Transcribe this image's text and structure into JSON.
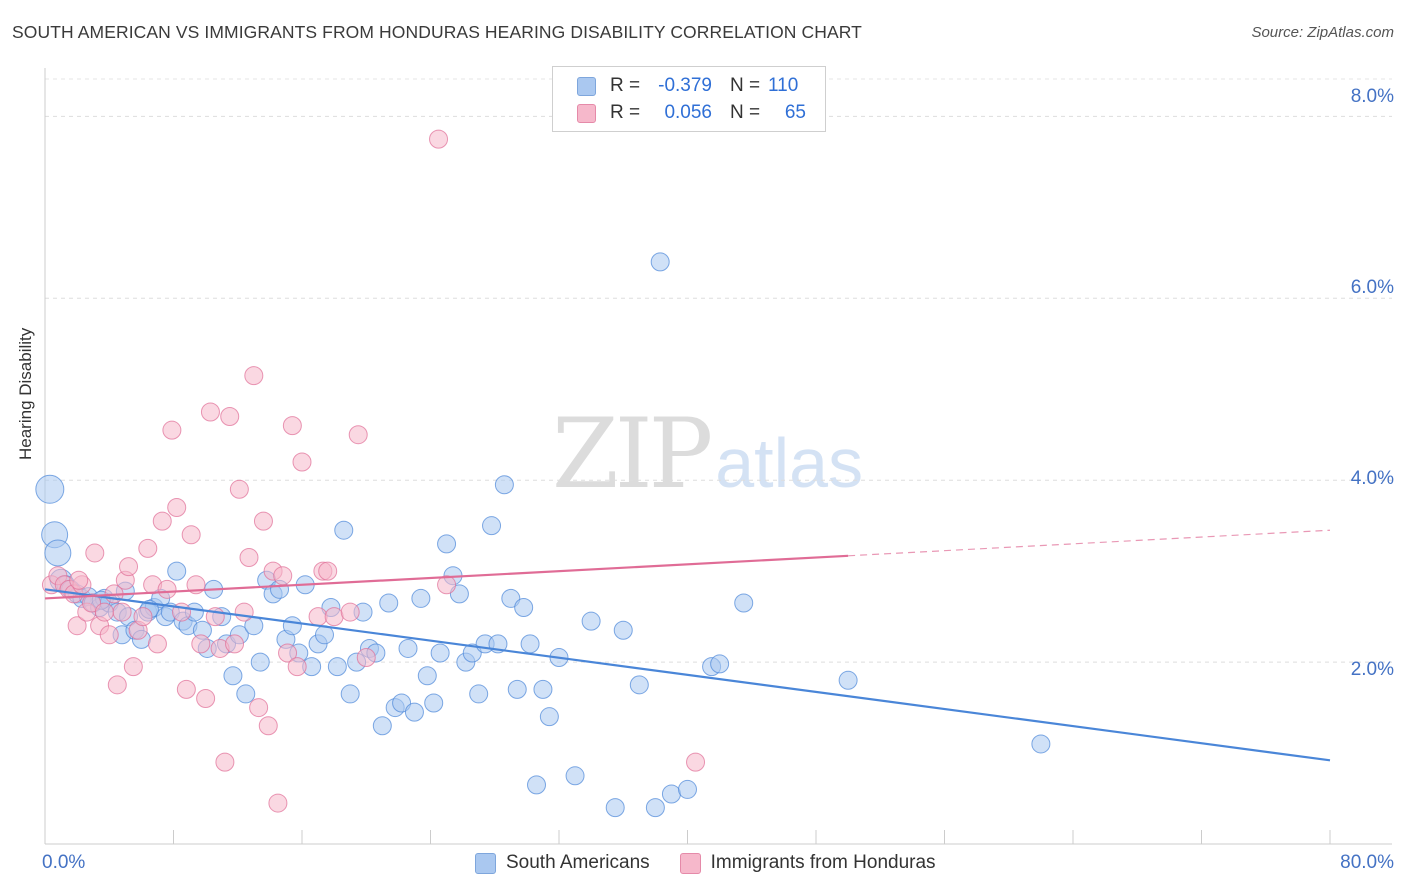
{
  "title": "SOUTH AMERICAN VS IMMIGRANTS FROM HONDURAS HEARING DISABILITY CORRELATION CHART",
  "source": "Source: ZipAtlas.com",
  "watermark": {
    "part1": "ZIP",
    "part2": "atlas"
  },
  "legend_top": {
    "rows": [
      {
        "r_label": "R =",
        "r_value": "-0.379",
        "n_label": "N =",
        "n_value": "110",
        "color": "#aac8f0"
      },
      {
        "r_label": "R =",
        "r_value": "0.056",
        "n_label": "N =",
        "n_value": "65",
        "color": "#f6b8cb"
      }
    ]
  },
  "legend_bottom": [
    "South Americans",
    "Immigrants from Honduras"
  ],
  "chart_data": {
    "type": "scatter",
    "title": "SOUTH AMERICAN VS IMMIGRANTS FROM HONDURAS HEARING DISABILITY CORRELATION CHART",
    "xlabel": "",
    "ylabel": "Hearing Disability",
    "xlim": [
      0,
      80
    ],
    "ylim": [
      0,
      8.4
    ],
    "x_tick_labels": [
      "0.0%",
      "80.0%"
    ],
    "y_ticks": [
      2,
      4,
      6,
      8
    ],
    "y_tick_labels": [
      "2.0%",
      "4.0%",
      "6.0%",
      "8.0%"
    ],
    "grid": "horizontal dashed",
    "legend_position": "top-center",
    "series": [
      {
        "name": "South Americans",
        "color": "#4a86d8",
        "fill": "#aac8f0",
        "r": -0.379,
        "n": 110,
        "trend": {
          "x": [
            0,
            80
          ],
          "y": [
            2.8,
            0.92
          ],
          "dashed_from": null
        },
        "points": [
          [
            0.3,
            3.9
          ],
          [
            0.6,
            3.4
          ],
          [
            0.8,
            3.2
          ],
          [
            1.0,
            2.9
          ],
          [
            1.3,
            2.85
          ],
          [
            1.6,
            2.8
          ],
          [
            2.0,
            2.75
          ],
          [
            2.3,
            2.7
          ],
          [
            2.7,
            2.72
          ],
          [
            3.0,
            2.65
          ],
          [
            3.4,
            2.6
          ],
          [
            3.7,
            2.7
          ],
          [
            4.0,
            2.65
          ],
          [
            4.5,
            2.55
          ],
          [
            4.8,
            2.3
          ],
          [
            5.2,
            2.5
          ],
          [
            5.6,
            2.35
          ],
          [
            6.0,
            2.25
          ],
          [
            6.4,
            2.55
          ],
          [
            6.8,
            2.6
          ],
          [
            7.2,
            2.7
          ],
          [
            7.5,
            2.5
          ],
          [
            7.8,
            2.55
          ],
          [
            8.2,
            3.0
          ],
          [
            8.6,
            2.45
          ],
          [
            8.9,
            2.4
          ],
          [
            9.3,
            2.55
          ],
          [
            9.8,
            2.35
          ],
          [
            10.1,
            2.15
          ],
          [
            10.5,
            2.8
          ],
          [
            11.0,
            2.5
          ],
          [
            11.3,
            2.2
          ],
          [
            11.7,
            1.85
          ],
          [
            12.1,
            2.3
          ],
          [
            12.5,
            1.65
          ],
          [
            13.0,
            2.4
          ],
          [
            13.4,
            2.0
          ],
          [
            13.8,
            2.9
          ],
          [
            14.2,
            2.75
          ],
          [
            14.6,
            2.8
          ],
          [
            15.0,
            2.25
          ],
          [
            15.4,
            2.4
          ],
          [
            15.8,
            2.1
          ],
          [
            16.2,
            2.85
          ],
          [
            16.6,
            1.95
          ],
          [
            17.0,
            2.2
          ],
          [
            17.4,
            2.3
          ],
          [
            17.8,
            2.6
          ],
          [
            18.2,
            1.95
          ],
          [
            18.6,
            3.45
          ],
          [
            19.0,
            1.65
          ],
          [
            19.4,
            2.0
          ],
          [
            19.8,
            2.55
          ],
          [
            20.2,
            2.15
          ],
          [
            20.6,
            2.1
          ],
          [
            21.0,
            1.3
          ],
          [
            21.4,
            2.65
          ],
          [
            21.8,
            1.5
          ],
          [
            22.2,
            1.55
          ],
          [
            22.6,
            2.15
          ],
          [
            23.0,
            1.45
          ],
          [
            23.4,
            2.7
          ],
          [
            23.8,
            1.85
          ],
          [
            24.2,
            1.55
          ],
          [
            24.6,
            2.1
          ],
          [
            25.0,
            3.3
          ],
          [
            25.4,
            2.95
          ],
          [
            25.8,
            2.75
          ],
          [
            26.2,
            2.0
          ],
          [
            26.6,
            2.1
          ],
          [
            27.0,
            1.65
          ],
          [
            27.4,
            2.2
          ],
          [
            27.8,
            3.5
          ],
          [
            28.2,
            2.2
          ],
          [
            28.6,
            3.95
          ],
          [
            29.0,
            2.7
          ],
          [
            29.4,
            1.7
          ],
          [
            29.8,
            2.6
          ],
          [
            30.2,
            2.2
          ],
          [
            30.6,
            0.65
          ],
          [
            31.0,
            1.7
          ],
          [
            31.4,
            1.4
          ],
          [
            32.0,
            2.05
          ],
          [
            33.0,
            0.75
          ],
          [
            34.0,
            2.45
          ],
          [
            35.5,
            0.4
          ],
          [
            36.0,
            2.35
          ],
          [
            37.0,
            1.75
          ],
          [
            38.0,
            0.4
          ],
          [
            38.3,
            6.4
          ],
          [
            39.0,
            0.55
          ],
          [
            40.0,
            0.6
          ],
          [
            41.5,
            1.95
          ],
          [
            42.0,
            1.98
          ],
          [
            43.5,
            2.65
          ],
          [
            50.0,
            1.8
          ],
          [
            62.0,
            1.1
          ],
          [
            3.5,
            2.68
          ],
          [
            5.0,
            2.78
          ],
          [
            6.5,
            2.58
          ]
        ]
      },
      {
        "name": "Immigrants from Honduras",
        "color": "#e06c96",
        "fill": "#f6b8cb",
        "r": 0.056,
        "n": 65,
        "trend": {
          "x": [
            0,
            80
          ],
          "y": [
            2.7,
            3.45
          ],
          "dashed_from": 50
        },
        "points": [
          [
            0.4,
            2.85
          ],
          [
            0.8,
            2.95
          ],
          [
            1.2,
            2.85
          ],
          [
            1.5,
            2.8
          ],
          [
            1.8,
            2.75
          ],
          [
            2.0,
            2.4
          ],
          [
            2.3,
            2.85
          ],
          [
            2.6,
            2.55
          ],
          [
            2.9,
            2.65
          ],
          [
            3.1,
            3.2
          ],
          [
            3.4,
            2.4
          ],
          [
            3.7,
            2.55
          ],
          [
            4.0,
            2.3
          ],
          [
            4.3,
            2.75
          ],
          [
            4.5,
            1.75
          ],
          [
            4.8,
            2.55
          ],
          [
            5.0,
            2.9
          ],
          [
            5.2,
            3.05
          ],
          [
            5.5,
            1.95
          ],
          [
            5.8,
            2.35
          ],
          [
            6.1,
            2.5
          ],
          [
            6.4,
            3.25
          ],
          [
            6.7,
            2.85
          ],
          [
            7.0,
            2.2
          ],
          [
            7.3,
            3.55
          ],
          [
            7.6,
            2.8
          ],
          [
            7.9,
            4.55
          ],
          [
            8.2,
            3.7
          ],
          [
            8.5,
            2.55
          ],
          [
            8.8,
            1.7
          ],
          [
            9.1,
            3.4
          ],
          [
            9.4,
            2.85
          ],
          [
            9.7,
            2.2
          ],
          [
            10.0,
            1.6
          ],
          [
            10.3,
            4.75
          ],
          [
            10.6,
            2.5
          ],
          [
            10.9,
            2.15
          ],
          [
            11.2,
            0.9
          ],
          [
            11.5,
            4.7
          ],
          [
            11.8,
            2.2
          ],
          [
            12.1,
            3.9
          ],
          [
            12.4,
            2.55
          ],
          [
            12.7,
            3.15
          ],
          [
            13.0,
            5.15
          ],
          [
            13.3,
            1.5
          ],
          [
            13.6,
            3.55
          ],
          [
            13.9,
            1.3
          ],
          [
            14.2,
            3.0
          ],
          [
            14.5,
            0.45
          ],
          [
            14.8,
            2.95
          ],
          [
            15.1,
            2.1
          ],
          [
            15.4,
            4.6
          ],
          [
            15.7,
            1.95
          ],
          [
            16.0,
            4.2
          ],
          [
            17.0,
            2.5
          ],
          [
            17.3,
            3.0
          ],
          [
            17.6,
            3.0
          ],
          [
            18.0,
            2.5
          ],
          [
            19.0,
            2.55
          ],
          [
            19.5,
            4.5
          ],
          [
            20.0,
            2.05
          ],
          [
            24.5,
            7.75
          ],
          [
            25.0,
            2.85
          ],
          [
            40.5,
            0.9
          ],
          [
            2.1,
            2.9
          ]
        ]
      }
    ]
  }
}
